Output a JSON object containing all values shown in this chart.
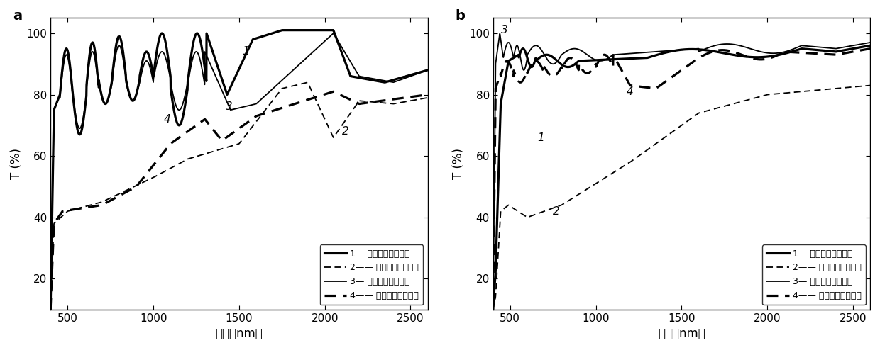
{
  "panel_a_label": "a",
  "panel_b_label": "b",
  "xlabel": "波长（nm）",
  "ylabel": "T (%)",
  "xlim": [
    400,
    2600
  ],
  "ylim": [
    10,
    105
  ],
  "yticks": [
    20,
    40,
    60,
    80,
    100
  ],
  "xticks": [
    500,
    1000,
    1500,
    2000,
    2500
  ],
  "legend_items": [
    {
      "num": "1",
      "style": "solid",
      "weight": "thick",
      "label": "有保护层，光照前"
    },
    {
      "num": "2",
      "style": "dashed",
      "weight": "thin",
      "label": "有保护层，光照后"
    },
    {
      "num": "3",
      "style": "solid",
      "weight": "thin",
      "label": "无保护层，光照前"
    },
    {
      "num": "4",
      "style": "dashed",
      "weight": "thick",
      "label": "无保护层，光照后"
    }
  ],
  "line_color": "#000000",
  "background_color": "#ffffff"
}
